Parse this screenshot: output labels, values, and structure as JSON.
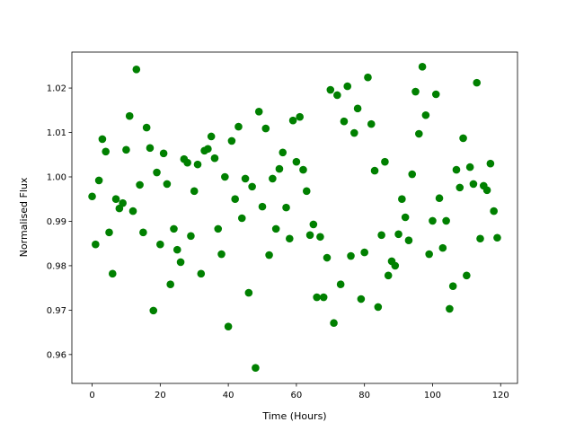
{
  "chart_data": {
    "type": "scatter",
    "x_label": "Time (Hours)",
    "y_label": "Normalised Flux",
    "x": [
      0,
      1,
      2,
      3,
      4,
      5,
      6,
      7,
      8,
      9,
      10,
      11,
      12,
      13,
      14,
      15,
      16,
      17,
      18,
      19,
      20,
      21,
      22,
      23,
      24,
      25,
      26,
      27,
      28,
      29,
      30,
      31,
      32,
      33,
      34,
      35,
      36,
      37,
      38,
      39,
      40,
      41,
      42,
      43,
      44,
      45,
      46,
      47,
      48,
      49,
      50,
      51,
      52,
      53,
      54,
      55,
      56,
      57,
      58,
      59,
      60,
      61,
      62,
      63,
      64,
      65,
      66,
      67,
      68,
      69,
      70,
      71,
      72,
      73,
      74,
      75,
      76,
      77,
      78,
      79,
      80,
      81,
      82,
      83,
      84,
      85,
      86,
      87,
      88,
      89,
      90,
      91,
      92,
      93,
      94,
      95,
      96,
      97,
      98,
      99,
      100,
      101,
      102,
      103,
      104,
      105,
      106,
      107,
      108,
      109,
      110,
      111,
      112,
      113,
      114,
      115,
      116,
      117,
      118,
      119
    ],
    "series": [
      {
        "color": "#008000",
        "values": [
          0.9956,
          0.9848,
          0.9992,
          1.0085,
          1.0057,
          0.9875,
          0.9782,
          0.995,
          0.9929,
          0.9941,
          1.0061,
          1.0137,
          0.9923,
          1.0242,
          0.9982,
          0.9875,
          1.0111,
          1.0065,
          0.9699,
          1.001,
          0.9848,
          1.0053,
          0.9984,
          0.9758,
          0.9883,
          0.9836,
          0.9808,
          1.004,
          1.0032,
          0.9867,
          0.9968,
          1.0028,
          0.9782,
          1.0059,
          1.0063,
          1.0091,
          1.0042,
          0.9883,
          0.9826,
          1.0,
          0.9663,
          1.0081,
          0.995,
          1.0113,
          0.9907,
          0.9996,
          0.9739,
          0.9978,
          0.957,
          1.0147,
          0.9933,
          1.0109,
          0.9824,
          0.9996,
          0.9883,
          1.0018,
          1.0055,
          0.9931,
          0.9861,
          1.0127,
          1.0034,
          1.0135,
          1.0016,
          0.9968,
          0.9869,
          0.9893,
          0.9729,
          0.9865,
          0.9729,
          0.9818,
          1.0196,
          0.9671,
          1.0184,
          0.9758,
          1.0125,
          1.0204,
          0.9822,
          1.0099,
          1.0154,
          0.9725,
          0.983,
          1.0224,
          1.0119,
          1.0014,
          0.9707,
          0.9869,
          1.0034,
          0.9778,
          0.981,
          0.98,
          0.9871,
          0.995,
          0.9909,
          0.9857,
          1.0006,
          1.0192,
          1.0097,
          1.0248,
          1.0139,
          0.9826,
          0.9901,
          1.0186,
          0.9952,
          0.984,
          0.9901,
          0.9703,
          0.9754,
          1.0016,
          0.9976,
          1.0087,
          0.9778,
          1.0022,
          0.9984,
          1.0212,
          0.9861,
          0.998,
          0.997,
          1.003,
          0.9923,
          0.9863
        ]
      }
    ],
    "xlim": [
      -5.95,
      124.95
    ],
    "ylim": [
      0.9535,
      1.0281
    ],
    "xticks": [
      0,
      20,
      40,
      60,
      80,
      100,
      120
    ],
    "yticks": [
      0.96,
      0.97,
      0.98,
      0.99,
      {
        "value": 1,
        "label": "1.00"
      },
      1.01,
      1.02
    ],
    "grid": false
  }
}
